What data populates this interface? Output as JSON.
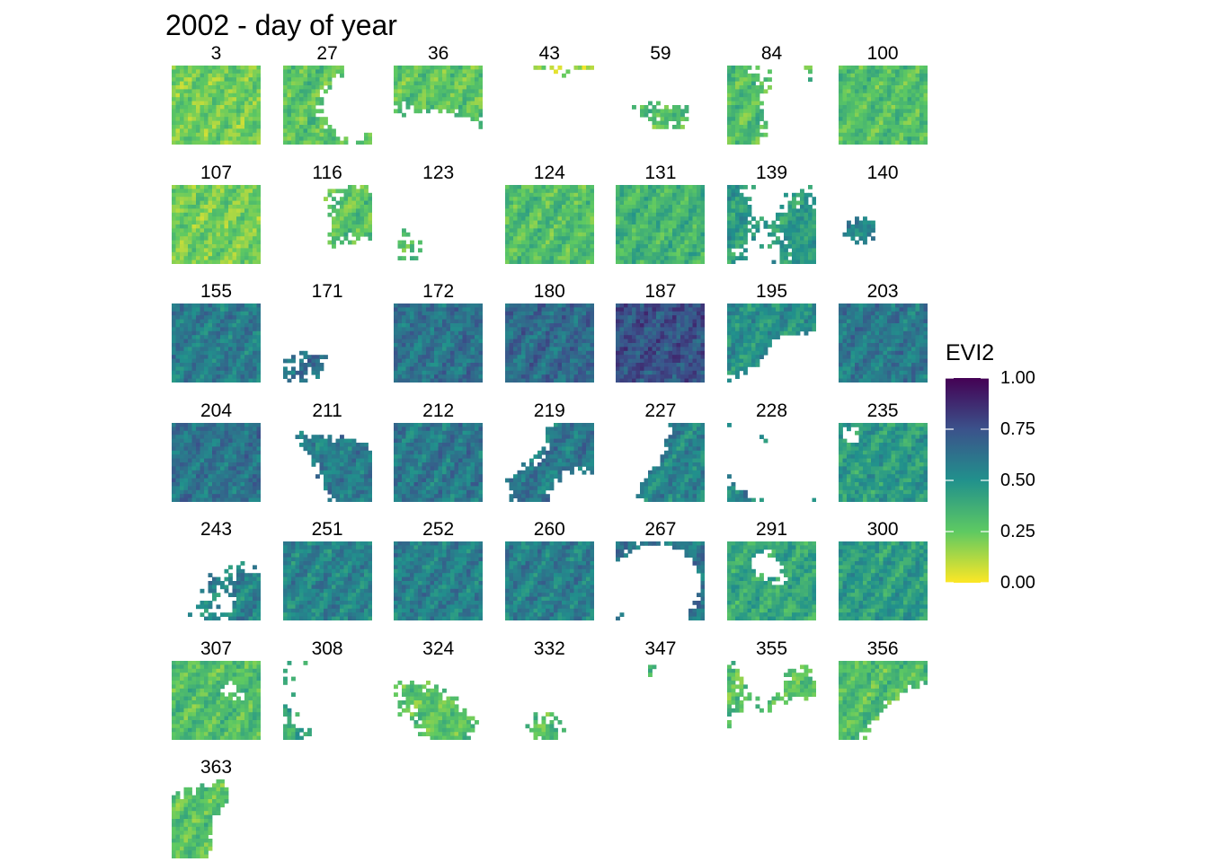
{
  "chart_data": {
    "type": "heatmap",
    "title": "2002 - day of year",
    "facet_variable": "day of year",
    "panels": [
      {
        "day": "3",
        "coverage": 1.0,
        "mean_evi2": 0.22
      },
      {
        "day": "27",
        "coverage": 0.55,
        "mean_evi2": 0.28
      },
      {
        "day": "36",
        "coverage": 0.6,
        "mean_evi2": 0.27
      },
      {
        "day": "43",
        "coverage": 0.03,
        "mean_evi2": 0.15
      },
      {
        "day": "59",
        "coverage": 0.12,
        "mean_evi2": 0.3
      },
      {
        "day": "84",
        "coverage": 0.4,
        "mean_evi2": 0.3
      },
      {
        "day": "100",
        "coverage": 1.0,
        "mean_evi2": 0.3
      },
      {
        "day": "107",
        "coverage": 1.0,
        "mean_evi2": 0.22
      },
      {
        "day": "116",
        "coverage": 0.3,
        "mean_evi2": 0.28
      },
      {
        "day": "123",
        "coverage": 0.04,
        "mean_evi2": 0.3
      },
      {
        "day": "124",
        "coverage": 1.0,
        "mean_evi2": 0.3
      },
      {
        "day": "131",
        "coverage": 1.0,
        "mean_evi2": 0.35
      },
      {
        "day": "139",
        "coverage": 0.6,
        "mean_evi2": 0.45
      },
      {
        "day": "140",
        "coverage": 0.08,
        "mean_evi2": 0.55
      },
      {
        "day": "155",
        "coverage": 1.0,
        "mean_evi2": 0.58
      },
      {
        "day": "171",
        "coverage": 0.1,
        "mean_evi2": 0.62
      },
      {
        "day": "172",
        "coverage": 1.0,
        "mean_evi2": 0.62
      },
      {
        "day": "180",
        "coverage": 1.0,
        "mean_evi2": 0.65
      },
      {
        "day": "187",
        "coverage": 1.0,
        "mean_evi2": 0.75
      },
      {
        "day": "195",
        "coverage": 0.6,
        "mean_evi2": 0.5
      },
      {
        "day": "203",
        "coverage": 1.0,
        "mean_evi2": 0.6
      },
      {
        "day": "204",
        "coverage": 1.0,
        "mean_evi2": 0.62
      },
      {
        "day": "211",
        "coverage": 0.5,
        "mean_evi2": 0.58
      },
      {
        "day": "212",
        "coverage": 1.0,
        "mean_evi2": 0.6
      },
      {
        "day": "219",
        "coverage": 0.55,
        "mean_evi2": 0.6
      },
      {
        "day": "227",
        "coverage": 0.55,
        "mean_evi2": 0.55
      },
      {
        "day": "228",
        "coverage": 0.06,
        "mean_evi2": 0.55
      },
      {
        "day": "235",
        "coverage": 0.97,
        "mean_evi2": 0.45
      },
      {
        "day": "243",
        "coverage": 0.3,
        "mean_evi2": 0.55
      },
      {
        "day": "251",
        "coverage": 1.0,
        "mean_evi2": 0.55
      },
      {
        "day": "252",
        "coverage": 1.0,
        "mean_evi2": 0.57
      },
      {
        "day": "260",
        "coverage": 1.0,
        "mean_evi2": 0.57
      },
      {
        "day": "267",
        "coverage": 0.2,
        "mean_evi2": 0.6
      },
      {
        "day": "291",
        "coverage": 0.9,
        "mean_evi2": 0.4
      },
      {
        "day": "300",
        "coverage": 1.0,
        "mean_evi2": 0.45
      },
      {
        "day": "307",
        "coverage": 0.97,
        "mean_evi2": 0.3
      },
      {
        "day": "308",
        "coverage": 0.08,
        "mean_evi2": 0.4
      },
      {
        "day": "324",
        "coverage": 0.4,
        "mean_evi2": 0.28
      },
      {
        "day": "332",
        "coverage": 0.08,
        "mean_evi2": 0.3
      },
      {
        "day": "347",
        "coverage": 0.01,
        "mean_evi2": 0.3
      },
      {
        "day": "355",
        "coverage": 0.25,
        "mean_evi2": 0.28
      },
      {
        "day": "356",
        "coverage": 0.65,
        "mean_evi2": 0.3
      },
      {
        "day": "363",
        "coverage": 0.45,
        "mean_evi2": 0.28
      }
    ],
    "legend": {
      "title": "EVI2",
      "placement": "right",
      "colormap": "viridis (reversed)",
      "range": [
        0,
        1
      ],
      "ticks": [
        "0.00",
        "0.25",
        "0.50",
        "0.75",
        "1.00"
      ],
      "color_stops": [
        "#fde725",
        "#5ec962",
        "#21918c",
        "#3b528b",
        "#440154"
      ]
    },
    "missing_color": "#ffffff"
  }
}
